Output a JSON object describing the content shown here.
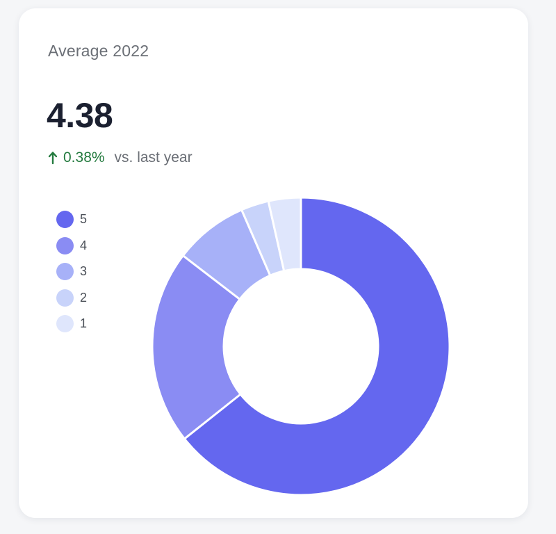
{
  "card": {
    "title": "Average 2022",
    "value": "4.38",
    "delta": "0.38%",
    "delta_caption": "vs. last year",
    "delta_direction": "up",
    "delta_color": "#237a3e"
  },
  "colors": {
    "5": "#6467ef",
    "4": "#8a8cf3",
    "3": "#a7b1f8",
    "2": "#c8d3fa",
    "1": "#dfe6fc"
  },
  "chart_data": {
    "type": "pie",
    "variant": "donut",
    "title": "",
    "legend_position": "left",
    "categories": [
      "5",
      "4",
      "3",
      "2",
      "1"
    ],
    "values": [
      64,
      21,
      8,
      3,
      3.5
    ]
  }
}
